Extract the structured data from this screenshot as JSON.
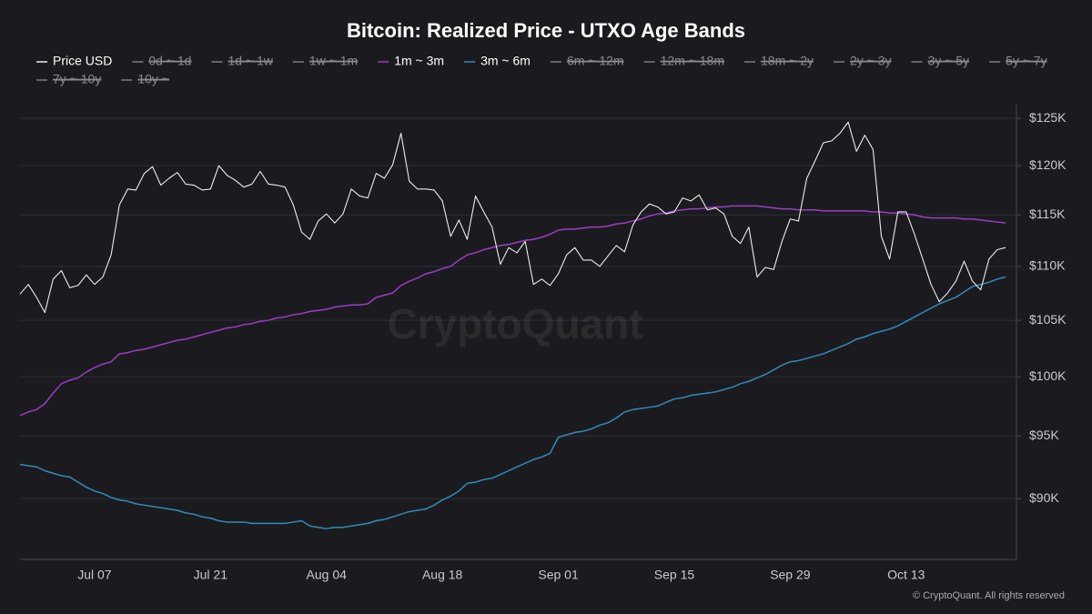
{
  "chart_data": {
    "type": "line",
    "title": "Bitcoin: Realized Price - UTXO Age Bands",
    "watermark": "CryptoQuant",
    "footer": "© CryptoQuant. All rights reserved",
    "log_scale": true,
    "grid": true,
    "ylim": [
      85.4,
      126.5
    ],
    "yticks": [
      {
        "value": 90,
        "label": "$90K"
      },
      {
        "value": 95,
        "label": "$95K"
      },
      {
        "value": 100,
        "label": "$100K"
      },
      {
        "value": 105,
        "label": "$105K"
      },
      {
        "value": 110,
        "label": "$110K"
      },
      {
        "value": 115,
        "label": "$115K"
      },
      {
        "value": 120,
        "label": "$120K"
      },
      {
        "value": 125,
        "label": "$125K"
      }
    ],
    "categories": [
      null,
      null,
      null,
      null,
      null,
      null,
      null,
      null,
      null,
      "Jul 07",
      null,
      null,
      null,
      null,
      null,
      null,
      null,
      null,
      null,
      null,
      null,
      null,
      null,
      "Jul 21",
      null,
      null,
      null,
      null,
      null,
      null,
      null,
      null,
      null,
      null,
      null,
      null,
      null,
      "Aug 04",
      null,
      null,
      null,
      null,
      null,
      null,
      null,
      null,
      null,
      null,
      null,
      null,
      null,
      "Aug 18",
      null,
      null,
      null,
      null,
      null,
      null,
      null,
      null,
      null,
      null,
      null,
      null,
      null,
      "Sep 01",
      null,
      null,
      null,
      null,
      null,
      null,
      null,
      null,
      null,
      null,
      null,
      null,
      null,
      "Sep 15",
      null,
      null,
      null,
      null,
      null,
      null,
      null,
      null,
      null,
      null,
      null,
      null,
      null,
      "Sep 29",
      null,
      null,
      null,
      null,
      null,
      null,
      null,
      null,
      null,
      null,
      null,
      null,
      null,
      "Oct 13",
      null,
      null,
      null,
      null,
      null,
      null,
      null,
      null,
      null,
      null,
      null,
      null
    ],
    "series": [
      {
        "name": "Price USD",
        "color": "#ececec",
        "visible": true,
        "values": [
          107.4,
          108.3,
          107.1,
          105.7,
          108.8,
          109.6,
          108.0,
          108.2,
          109.2,
          108.3,
          109.0,
          111.1,
          116.0,
          117.6,
          117.5,
          119.2,
          119.9,
          118.0,
          118.7,
          119.3,
          118.1,
          118.0,
          117.5,
          117.6,
          120.0,
          119.0,
          118.5,
          117.8,
          118.1,
          119.4,
          118.1,
          118.0,
          117.8,
          116.0,
          113.3,
          112.6,
          114.4,
          115.1,
          114.2,
          115.1,
          117.6,
          116.9,
          116.7,
          119.2,
          118.7,
          120.1,
          123.4,
          118.4,
          117.6,
          117.6,
          117.5,
          116.4,
          112.9,
          114.5,
          112.6,
          116.9,
          115.3,
          113.8,
          110.2,
          111.8,
          111.3,
          112.4,
          108.3,
          108.8,
          108.2,
          109.3,
          111.1,
          111.8,
          110.6,
          110.6,
          110.0,
          111.0,
          112.0,
          111.4,
          114.0,
          115.3,
          116.1,
          115.8,
          115.1,
          115.3,
          116.7,
          116.4,
          117.0,
          115.5,
          115.7,
          115.1,
          112.9,
          112.2,
          113.8,
          109.0,
          109.9,
          109.7,
          112.4,
          114.6,
          114.4,
          118.7,
          120.5,
          122.4,
          122.6,
          123.4,
          124.6,
          121.5,
          123.2,
          121.7,
          112.9,
          110.7,
          115.3,
          115.3,
          113.1,
          110.7,
          108.3,
          106.7,
          107.5,
          108.6,
          110.5,
          108.6,
          107.8,
          110.7,
          111.6,
          111.8
        ]
      },
      {
        "name": "0d ~ 1d",
        "visible": false
      },
      {
        "name": "1d ~ 1w",
        "visible": false
      },
      {
        "name": "1w ~ 1m",
        "visible": false
      },
      {
        "name": "1m ~ 3m",
        "color": "#9c3dc4",
        "visible": true,
        "values": [
          96.7,
          97.0,
          97.2,
          97.7,
          98.6,
          99.4,
          99.7,
          99.9,
          100.4,
          100.8,
          101.1,
          101.3,
          102.0,
          102.1,
          102.3,
          102.4,
          102.6,
          102.8,
          103.0,
          103.2,
          103.3,
          103.5,
          103.7,
          103.9,
          104.1,
          104.3,
          104.4,
          104.6,
          104.7,
          104.9,
          105.0,
          105.2,
          105.3,
          105.5,
          105.6,
          105.8,
          105.9,
          106.0,
          106.2,
          106.3,
          106.4,
          106.4,
          106.5,
          107.1,
          107.3,
          107.5,
          108.2,
          108.6,
          108.9,
          109.3,
          109.5,
          109.8,
          110.0,
          110.6,
          111.1,
          111.3,
          111.6,
          111.8,
          112.0,
          112.1,
          112.3,
          112.5,
          112.6,
          112.8,
          113.1,
          113.5,
          113.6,
          113.6,
          113.7,
          113.8,
          113.8,
          113.9,
          114.1,
          114.2,
          114.4,
          114.6,
          114.9,
          115.1,
          115.2,
          115.4,
          115.5,
          115.6,
          115.6,
          115.7,
          115.8,
          115.8,
          115.9,
          115.9,
          115.9,
          115.9,
          115.8,
          115.7,
          115.6,
          115.6,
          115.5,
          115.5,
          115.5,
          115.4,
          115.4,
          115.4,
          115.4,
          115.4,
          115.4,
          115.3,
          115.3,
          115.2,
          115.2,
          115.1,
          115.0,
          114.8,
          114.7,
          114.7,
          114.7,
          114.7,
          114.6,
          114.6,
          114.5,
          114.4,
          114.3,
          114.2
        ]
      },
      {
        "name": "3m ~ 6m",
        "color": "#2f8db8",
        "visible": true,
        "values": [
          92.7,
          92.6,
          92.5,
          92.2,
          92.0,
          91.8,
          91.7,
          91.3,
          90.9,
          90.6,
          90.4,
          90.1,
          89.9,
          89.8,
          89.6,
          89.5,
          89.4,
          89.3,
          89.2,
          89.1,
          88.9,
          88.8,
          88.6,
          88.5,
          88.3,
          88.2,
          88.2,
          88.2,
          88.1,
          88.1,
          88.1,
          88.1,
          88.1,
          88.2,
          88.3,
          87.9,
          87.8,
          87.7,
          87.8,
          87.8,
          87.9,
          88.0,
          88.1,
          88.3,
          88.4,
          88.6,
          88.8,
          89.0,
          89.1,
          89.2,
          89.5,
          89.9,
          90.2,
          90.6,
          91.2,
          91.3,
          91.5,
          91.6,
          91.9,
          92.2,
          92.5,
          92.8,
          93.1,
          93.3,
          93.6,
          94.9,
          95.1,
          95.3,
          95.4,
          95.6,
          95.9,
          96.1,
          96.5,
          97.0,
          97.2,
          97.3,
          97.4,
          97.5,
          97.8,
          98.1,
          98.2,
          98.4,
          98.5,
          98.6,
          98.7,
          98.9,
          99.1,
          99.4,
          99.6,
          99.9,
          100.2,
          100.6,
          101.0,
          101.3,
          101.4,
          101.6,
          101.8,
          102.0,
          102.3,
          102.6,
          102.9,
          103.3,
          103.5,
          103.8,
          104.0,
          104.2,
          104.5,
          104.9,
          105.3,
          105.7,
          106.1,
          106.5,
          106.8,
          107.1,
          107.6,
          108.1,
          108.3,
          108.5,
          108.8,
          109.0
        ]
      },
      {
        "name": "6m ~ 12m",
        "visible": false
      },
      {
        "name": "12m ~ 18m",
        "visible": false
      },
      {
        "name": "18m ~ 2y",
        "visible": false
      },
      {
        "name": "2y ~ 3y",
        "visible": false
      },
      {
        "name": "3y ~ 5y",
        "visible": false
      },
      {
        "name": "5y ~ 7y",
        "visible": false
      },
      {
        "name": "7y ~ 10y",
        "visible": false
      },
      {
        "name": "10y ~",
        "visible": false
      }
    ]
  }
}
